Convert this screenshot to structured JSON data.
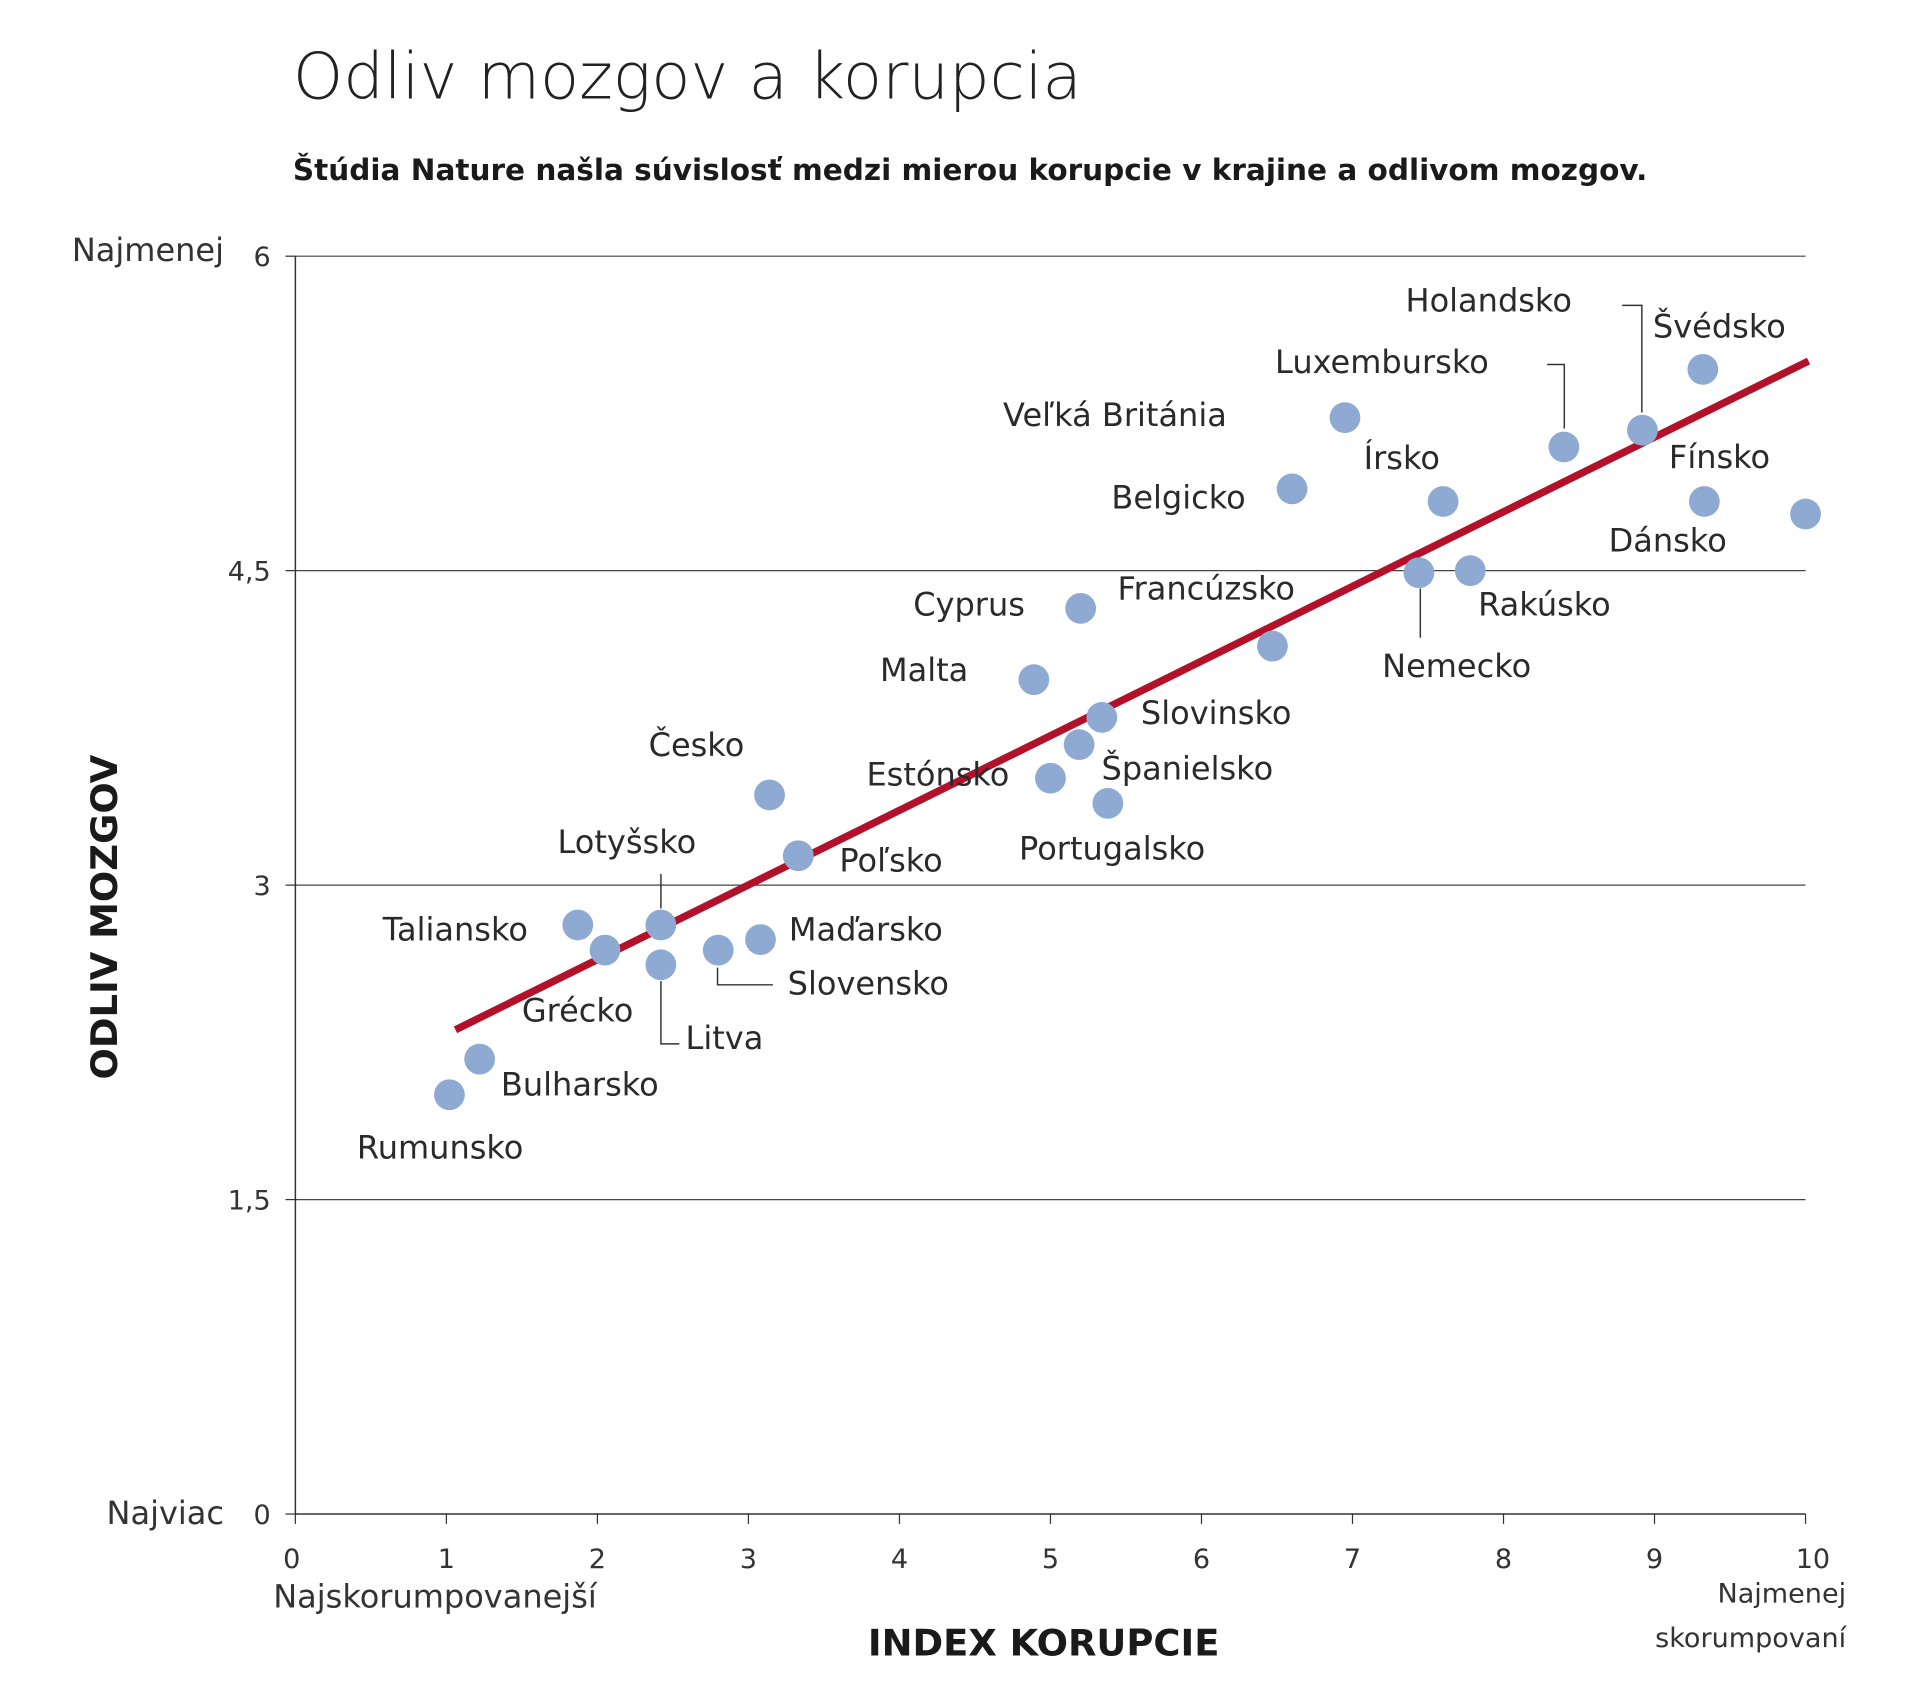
{
  "chart_data": {
    "type": "scatter",
    "title": "Odliv mozgov a korupcia",
    "subtitle": "Štúdia Nature našla súvislosť medzi mierou korupcie v krajine a odlivom mozgov.",
    "xlabel": "INDEX KORUPCIE",
    "ylabel": "ODLIV MOZGOV",
    "xlim": [
      0,
      10
    ],
    "ylim": [
      0,
      6
    ],
    "x_ticks": [
      "0",
      "1",
      "2",
      "3",
      "4",
      "5",
      "6",
      "7",
      "8",
      "9",
      "10"
    ],
    "y_ticks": [
      {
        "value": 0,
        "label": "0"
      },
      {
        "value": 1.5,
        "label": "1,5"
      },
      {
        "value": 3,
        "label": "3"
      },
      {
        "value": 4.5,
        "label": "4,5"
      },
      {
        "value": 6,
        "label": "6"
      }
    ],
    "x_low_label": "Najskorumpovanejší",
    "x_high_label_line1": "Najmenej",
    "x_high_label_line2": "skorumpovaní",
    "y_low_label": "Najviac",
    "y_high_label": "Najmenej",
    "grid": "horizontal",
    "dot_color": "#8eaad2",
    "trend_color": "#b3102a",
    "trendline": {
      "x": [
        1.06,
        10.02
      ],
      "y": [
        2.31,
        5.5
      ]
    },
    "points": [
      {
        "name": "Rumunsko",
        "x": 1.02,
        "y": 2.0
      },
      {
        "name": "Bulharsko",
        "x": 1.22,
        "y": 2.17
      },
      {
        "name": "Grécko",
        "x": 2.05,
        "y": 2.69
      },
      {
        "name": "Taliansko",
        "x": 1.87,
        "y": 2.81
      },
      {
        "name": "Lotyšsko",
        "x": 2.42,
        "y": 2.81
      },
      {
        "name": "Litva",
        "x": 2.42,
        "y": 2.62
      },
      {
        "name": "Slovensko",
        "x": 2.8,
        "y": 2.69
      },
      {
        "name": "Maďarsko",
        "x": 3.08,
        "y": 2.74
      },
      {
        "name": "Česko",
        "x": 3.14,
        "y": 3.43
      },
      {
        "name": "Poľsko",
        "x": 3.33,
        "y": 3.14
      },
      {
        "name": "Estónsko",
        "x": 5.0,
        "y": 3.51
      },
      {
        "name": "Španielsko",
        "x": 5.19,
        "y": 3.67
      },
      {
        "name": "Slovinsko",
        "x": 5.34,
        "y": 3.8
      },
      {
        "name": "Portugalsko",
        "x": 5.38,
        "y": 3.39
      },
      {
        "name": "Malta",
        "x": 4.89,
        "y": 3.98
      },
      {
        "name": "Cyprus",
        "x": 5.2,
        "y": 4.32
      },
      {
        "name": "Francúzsko",
        "x": 6.47,
        "y": 4.14
      },
      {
        "name": "Belgicko",
        "x": 6.6,
        "y": 4.89
      },
      {
        "name": "Veľká Británia",
        "x": 6.95,
        "y": 5.23
      },
      {
        "name": "Írsko",
        "x": 7.6,
        "y": 4.83
      },
      {
        "name": "Nemecko",
        "x": 7.44,
        "y": 4.49
      },
      {
        "name": "Rakúsko",
        "x": 7.78,
        "y": 4.5
      },
      {
        "name": "Luxembursko",
        "x": 8.4,
        "y": 5.09
      },
      {
        "name": "Holandsko",
        "x": 8.92,
        "y": 5.17
      },
      {
        "name": "Švédsko",
        "x": 9.32,
        "y": 5.46
      },
      {
        "name": "Fínsko",
        "x": 9.33,
        "y": 4.83
      },
      {
        "name": "Dánsko",
        "x": 10.0,
        "y": 4.77
      }
    ]
  }
}
